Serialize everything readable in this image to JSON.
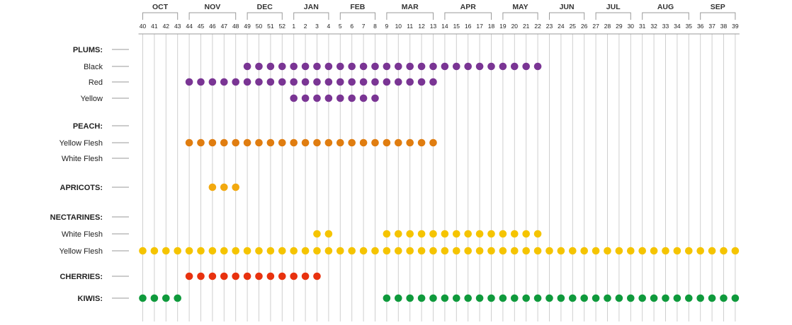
{
  "chart_data": {
    "type": "scatter",
    "title": "",
    "months": [
      {
        "label": "OCT",
        "from": 40,
        "to": 43
      },
      {
        "label": "NOV",
        "from": 44,
        "to": 48
      },
      {
        "label": "DEC",
        "from": 49,
        "to": 52
      },
      {
        "label": "JAN",
        "from": 1,
        "to": 4
      },
      {
        "label": "FEB",
        "from": 5,
        "to": 8
      },
      {
        "label": "MAR",
        "from": 9,
        "to": 13
      },
      {
        "label": "APR",
        "from": 14,
        "to": 18
      },
      {
        "label": "MAY",
        "from": 19,
        "to": 22
      },
      {
        "label": "JUN",
        "from": 23,
        "to": 26
      },
      {
        "label": "JUL",
        "from": 27,
        "to": 30
      },
      {
        "label": "AUG",
        "from": 31,
        "to": 35
      },
      {
        "label": "SEP",
        "from": 36,
        "to": 39
      }
    ],
    "weeks": [
      40,
      41,
      42,
      43,
      44,
      45,
      46,
      47,
      48,
      49,
      50,
      51,
      52,
      1,
      2,
      3,
      4,
      5,
      6,
      7,
      8,
      9,
      10,
      11,
      12,
      13,
      14,
      15,
      16,
      17,
      18,
      19,
      20,
      21,
      22,
      23,
      24,
      25,
      26,
      27,
      28,
      29,
      30,
      31,
      32,
      33,
      34,
      35,
      36,
      37,
      38,
      39
    ],
    "rows": [
      {
        "label": "PLUMS:",
        "header": true,
        "weeks": []
      },
      {
        "label": "Black",
        "color": "#7a3594",
        "weeks": [
          49,
          50,
          51,
          52,
          1,
          2,
          3,
          4,
          5,
          6,
          7,
          8,
          9,
          10,
          11,
          12,
          13,
          14,
          15,
          16,
          17,
          18,
          19,
          20,
          21,
          22
        ]
      },
      {
        "label": "Red",
        "color": "#7a3594",
        "weeks": [
          44,
          45,
          46,
          47,
          48,
          49,
          50,
          51,
          52,
          1,
          2,
          3,
          4,
          5,
          6,
          7,
          8,
          9,
          10,
          11,
          12,
          13
        ]
      },
      {
        "label": "Yellow",
        "color": "#7a3594",
        "weeks": [
          1,
          2,
          3,
          4,
          5,
          6,
          7,
          8
        ]
      },
      {
        "label": "PEACH:",
        "header": true,
        "weeks": []
      },
      {
        "label": "Yellow Flesh",
        "color": "#e07d10",
        "weeks": [
          44,
          45,
          46,
          47,
          48,
          49,
          50,
          51,
          52,
          1,
          2,
          3,
          4,
          5,
          6,
          7,
          8,
          9,
          10,
          11,
          12,
          13
        ]
      },
      {
        "label": "White Flesh",
        "color": "#e07d10",
        "weeks": []
      },
      {
        "label": "APRICOTS:",
        "header": true,
        "color": "#f2a90f",
        "weeks": [
          46,
          47,
          48
        ]
      },
      {
        "label": "NECTARINES:",
        "header": true,
        "weeks": []
      },
      {
        "label": "White Flesh",
        "color": "#f5c400",
        "weeks": [
          3,
          4,
          9,
          10,
          11,
          12,
          13,
          14,
          15,
          16,
          17,
          18,
          19,
          20,
          21,
          22
        ]
      },
      {
        "label": "Yellow Flesh",
        "color": "#f5c400",
        "weeks": [
          40,
          41,
          42,
          43,
          44,
          45,
          46,
          47,
          48,
          49,
          50,
          51,
          52,
          1,
          2,
          3,
          4,
          5,
          6,
          7,
          8,
          9,
          10,
          11,
          12,
          13,
          14,
          15,
          16,
          17,
          18,
          19,
          20,
          21,
          22,
          23,
          24,
          25,
          26,
          27,
          28,
          29,
          30,
          31,
          32,
          33,
          34,
          35,
          36,
          37,
          38,
          39
        ]
      },
      {
        "label": "CHERRIES:",
        "header": true,
        "color": "#e8320f",
        "weeks": [
          44,
          45,
          46,
          47,
          48,
          49,
          50,
          51,
          52,
          1,
          2,
          3
        ]
      },
      {
        "label": "KIWIS:",
        "header": true,
        "color": "#0f9a3c",
        "weeks": [
          40,
          41,
          42,
          43,
          9,
          10,
          11,
          12,
          13,
          14,
          15,
          16,
          17,
          18,
          19,
          20,
          21,
          22,
          23,
          24,
          25,
          26,
          27,
          28,
          29,
          30,
          31,
          32,
          33,
          34,
          35,
          36,
          37,
          38,
          39
        ]
      }
    ]
  }
}
